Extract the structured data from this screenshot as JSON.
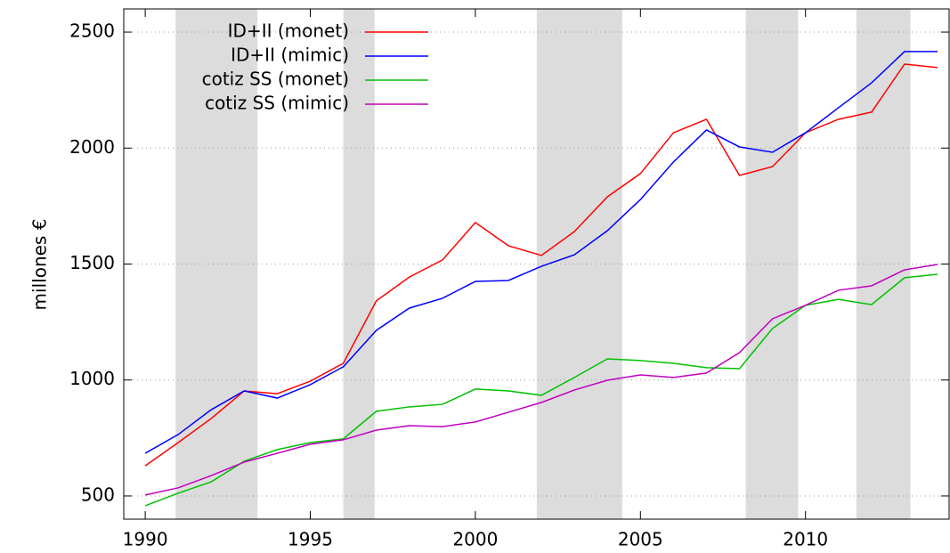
{
  "chart_data": {
    "type": "line",
    "ylabel": "millones €",
    "x": [
      1990,
      1991,
      1992,
      1993,
      1994,
      1995,
      1996,
      1997,
      1998,
      1999,
      2000,
      2001,
      2002,
      2003,
      2004,
      2005,
      2006,
      2007,
      2008,
      2009,
      2010,
      2011,
      2012,
      2013,
      2014
    ],
    "series": [
      {
        "name": "ID+II (monet)",
        "color": "#ff0000",
        "values": [
          630,
          730,
          834,
          953,
          941,
          995,
          1072,
          1341,
          1444,
          1517,
          1679,
          1579,
          1537,
          1640,
          1790,
          1890,
          2066,
          2124,
          1882,
          1920,
          2066,
          2124,
          2155,
          2362,
          2347
        ]
      },
      {
        "name": "ID+II (mimic)",
        "color": "#0000ff",
        "values": [
          684,
          765,
          872,
          953,
          922,
          980,
          1057,
          1214,
          1310,
          1352,
          1425,
          1429,
          1490,
          1540,
          1644,
          1778,
          1940,
          2078,
          2005,
          1982,
          2066,
          2174,
          2281,
          2416,
          2416
        ]
      },
      {
        "name": "cotiz SS (monet)",
        "color": "#00c000",
        "values": [
          458,
          512,
          561,
          650,
          700,
          730,
          746,
          865,
          884,
          895,
          961,
          953,
          934,
          1011,
          1091,
          1084,
          1072,
          1053,
          1049,
          1222,
          1322,
          1348,
          1325,
          1441,
          1456
        ]
      },
      {
        "name": "cotiz SS (mimic)",
        "color": "#c000c0",
        "values": [
          504,
          535,
          588,
          646,
          684,
          723,
          742,
          784,
          803,
          799,
          819,
          861,
          903,
          957,
          999,
          1022,
          1011,
          1030,
          1118,
          1264,
          1322,
          1387,
          1406,
          1475,
          1498
        ]
      }
    ],
    "shaded_regions": [
      [
        1990.92,
        1993.4
      ],
      [
        1996.0,
        1996.95
      ],
      [
        2001.86,
        2004.45
      ],
      [
        2008.19,
        2009.78
      ],
      [
        2011.54,
        2013.18
      ]
    ],
    "shade_color": "#dcdcdc",
    "xlim": [
      1989.35,
      2014.35
    ],
    "xticks": [
      1990,
      1995,
      2000,
      2005,
      2010
    ],
    "ylim": [
      400,
      2600
    ],
    "yticks": [
      500,
      1000,
      1500,
      2000,
      2500
    ],
    "grid": true,
    "legend": "top-left"
  }
}
